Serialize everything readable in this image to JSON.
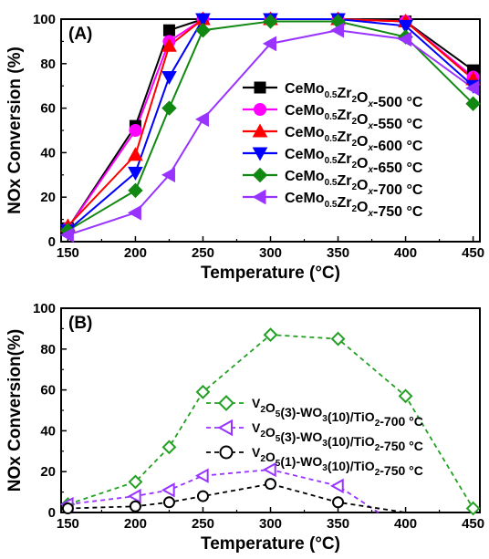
{
  "chart_data": [
    {
      "type": "line",
      "panel_label": "(A)",
      "xlabel": "Temperature (°C)",
      "ylabel": "NOx Conversion (%)",
      "xlim": [
        145,
        455
      ],
      "ylim": [
        0,
        100
      ],
      "xticks": [
        150,
        200,
        250,
        300,
        350,
        400,
        450
      ],
      "yticks": [
        0,
        20,
        40,
        60,
        80,
        100
      ],
      "legend_position": "right-center",
      "series": [
        {
          "name": "CeMo0.5Zr2Ox-500 °C",
          "legend": {
            "prefix": "CeMo",
            "sub1": "0.5",
            "mid": "Zr",
            "sub2": "2",
            "mid2": "O",
            "sub3": "x",
            "suffix": "-500 °C"
          },
          "color": "#000000",
          "marker": "square",
          "x": [
            150,
            200,
            225,
            250,
            300,
            350,
            400,
            450
          ],
          "y": [
            6,
            52,
            95,
            100,
            100,
            100,
            99,
            77
          ]
        },
        {
          "name": "CeMo0.5Zr2Ox-550 °C",
          "legend": {
            "prefix": "CeMo",
            "sub1": "0.5",
            "mid": "Zr",
            "sub2": "2",
            "mid2": "O",
            "sub3": "x",
            "suffix": "-550 °C"
          },
          "color": "#ff00ff",
          "marker": "circle",
          "x": [
            150,
            200,
            225,
            250,
            300,
            350,
            400,
            450
          ],
          "y": [
            6,
            50,
            90,
            100,
            100,
            100,
            99,
            74
          ]
        },
        {
          "name": "CeMo0.5Zr2Ox-600 °C",
          "legend": {
            "prefix": "CeMo",
            "sub1": "0.5",
            "mid": "Zr",
            "sub2": "2",
            "mid2": "O",
            "sub3": "x",
            "suffix": "-600 °C"
          },
          "color": "#ff0000",
          "marker": "triangle-up",
          "x": [
            150,
            200,
            225,
            250,
            300,
            350,
            400,
            450
          ],
          "y": [
            7,
            39,
            88,
            100,
            100,
            100,
            99,
            73
          ]
        },
        {
          "name": "CeMo0.5Zr2Ox-650 °C",
          "legend": {
            "prefix": "CeMo",
            "sub1": "0.5",
            "mid": "Zr",
            "sub2": "2",
            "mid2": "O",
            "sub3": "x",
            "suffix": "-650 °C"
          },
          "color": "#0000ff",
          "marker": "triangle-down",
          "x": [
            150,
            200,
            225,
            250,
            300,
            350,
            400,
            450
          ],
          "y": [
            5,
            31,
            74,
            100,
            100,
            100,
            97,
            70
          ]
        },
        {
          "name": "CeMo0.5Zr2Ox-700 °C",
          "legend": {
            "prefix": "CeMo",
            "sub1": "0.5",
            "mid": "Zr",
            "sub2": "2",
            "mid2": "O",
            "sub3": "x",
            "suffix": "-700 °C"
          },
          "color": "#118811",
          "marker": "diamond",
          "x": [
            150,
            200,
            225,
            250,
            300,
            350,
            400,
            450
          ],
          "y": [
            5,
            23,
            60,
            95,
            99,
            99,
            92,
            62
          ]
        },
        {
          "name": "CeMo0.5Zr2Ox-750 °C",
          "legend": {
            "prefix": "CeMo",
            "sub1": "0.5",
            "mid": "Zr",
            "sub2": "2",
            "mid2": "O",
            "sub3": "x",
            "suffix": "-750 °C"
          },
          "color": "#9933ff",
          "marker": "triangle-left",
          "x": [
            150,
            200,
            225,
            250,
            300,
            350,
            400,
            450
          ],
          "y": [
            3,
            13,
            30,
            55,
            89,
            95,
            91,
            69
          ]
        }
      ]
    },
    {
      "type": "line",
      "panel_label": "(B)",
      "xlabel": "Temperature (°C)",
      "ylabel": "NOx Conversion(%)",
      "xlim": [
        145,
        455
      ],
      "ylim": [
        0,
        100
      ],
      "xticks": [
        150,
        200,
        250,
        300,
        350,
        400,
        450
      ],
      "yticks": [
        0,
        20,
        40,
        60,
        80,
        100
      ],
      "legend_position": "center",
      "line_style": "dashed",
      "series": [
        {
          "name": "V2O5(3)-WO3(10)/TiO2-700 °C",
          "legend": {
            "a": "V",
            "s1": "2",
            "b": "O",
            "s2": "5",
            "c": "(3)-WO",
            "s3": "3",
            "d": "(10)/TiO",
            "s4": "2",
            "e": "-700 °C"
          },
          "color": "#22a022",
          "marker": "diamond-open",
          "x": [
            150,
            200,
            225,
            250,
            300,
            350,
            400,
            450
          ],
          "y": [
            4,
            15,
            32,
            59,
            87,
            85,
            57,
            2
          ]
        },
        {
          "name": "V2O5(3)-WO3(10)/TiO2-750 °C",
          "legend": {
            "a": "V",
            "s1": "2",
            "b": "O",
            "s2": "5",
            "c": "(3)-WO",
            "s3": "3",
            "d": "(10)/TiO",
            "s4": "2",
            "e": "-750 °C"
          },
          "color": "#9933ff",
          "marker": "triangle-left-open",
          "x": [
            150,
            200,
            225,
            250,
            300,
            350,
            380
          ],
          "y": [
            4,
            8,
            11,
            18,
            21,
            13,
            0
          ]
        },
        {
          "name": "V2O5(1)-WO3(10)/TiO2-750 °C",
          "legend": {
            "a": "V",
            "s1": "2",
            "b": "O",
            "s2": "5",
            "c": "(1)-WO",
            "s3": "3",
            "d": "(10)/TiO",
            "s4": "2",
            "e": "-750 °C"
          },
          "color": "#000000",
          "marker": "circle-open",
          "x": [
            150,
            200,
            225,
            250,
            300,
            350,
            400
          ],
          "y": [
            2,
            3,
            5,
            8,
            14,
            5,
            0
          ]
        }
      ]
    }
  ]
}
